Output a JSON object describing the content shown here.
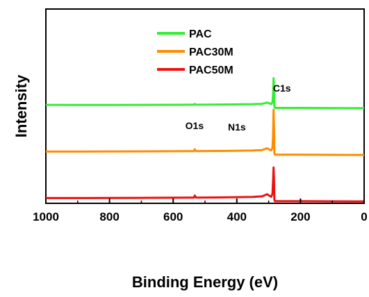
{
  "chart_data": {
    "type": "line",
    "xlabel": "Binding Energy (eV)",
    "ylabel": "Intensity",
    "xlim": [
      1000,
      0
    ],
    "x_reversed": true,
    "xticks": [
      "1000",
      "800",
      "600",
      "400",
      "200",
      "0"
    ],
    "yticks": "none",
    "legend_position": "top-center",
    "series": [
      {
        "name": "PAC",
        "color": "#33ee33",
        "offset": 2,
        "x": [
          1000,
          900,
          800,
          700,
          600,
          550,
          535,
          532,
          529,
          520,
          450,
          400,
          350,
          320,
          305,
          296,
          292,
          288,
          286,
          284.5,
          283,
          282,
          281,
          280,
          275,
          270,
          200,
          100,
          0
        ],
        "y": [
          0.8,
          0.79,
          0.79,
          0.8,
          0.81,
          0.82,
          0.83,
          0.98,
          0.84,
          0.83,
          0.86,
          0.89,
          0.93,
          1.0,
          1.25,
          1.05,
          0.95,
          1.3,
          2.9,
          6.0,
          3.5,
          0.6,
          0.25,
          0.2,
          0.2,
          0.2,
          0.2,
          0.18,
          0.15
        ]
      },
      {
        "name": "PAC30M",
        "color": "#ff8c00",
        "offset": 1,
        "x": [
          1000,
          900,
          800,
          700,
          600,
          550,
          535,
          532,
          529,
          520,
          450,
          400,
          350,
          320,
          305,
          296,
          292,
          288,
          286,
          284.5,
          283,
          282,
          281,
          280,
          275,
          270,
          200,
          100,
          0
        ],
        "y": [
          0.75,
          0.76,
          0.78,
          0.8,
          0.82,
          0.84,
          0.85,
          1.2,
          0.86,
          0.85,
          0.88,
          0.92,
          0.96,
          1.05,
          1.4,
          1.1,
          1.0,
          1.5,
          4.0,
          8.9,
          5.0,
          0.55,
          0.25,
          0.15,
          0.15,
          0.15,
          0.15,
          0.12,
          0.1
        ]
      },
      {
        "name": "PAC50M",
        "color": "#ee1111",
        "offset": 0,
        "x": [
          1000,
          900,
          800,
          700,
          600,
          550,
          535,
          532,
          529,
          520,
          450,
          400,
          350,
          320,
          305,
          296,
          292,
          288,
          286,
          284.5,
          283,
          282,
          281,
          280,
          275,
          270,
          200,
          100,
          0
        ],
        "y": [
          0.75,
          0.76,
          0.78,
          0.8,
          0.82,
          0.84,
          0.85,
          1.25,
          0.86,
          0.85,
          0.88,
          0.93,
          0.98,
          1.1,
          1.5,
          1.15,
          1.0,
          1.6,
          4.2,
          6.7,
          4.0,
          0.5,
          0.2,
          0.15,
          0.15,
          0.15,
          0.15,
          0.12,
          0.1
        ]
      }
    ],
    "annotations": [
      {
        "text": "O1s",
        "x": 533
      },
      {
        "text": "N1s",
        "x": 400
      },
      {
        "text": "C1s",
        "x": 280
      }
    ]
  }
}
